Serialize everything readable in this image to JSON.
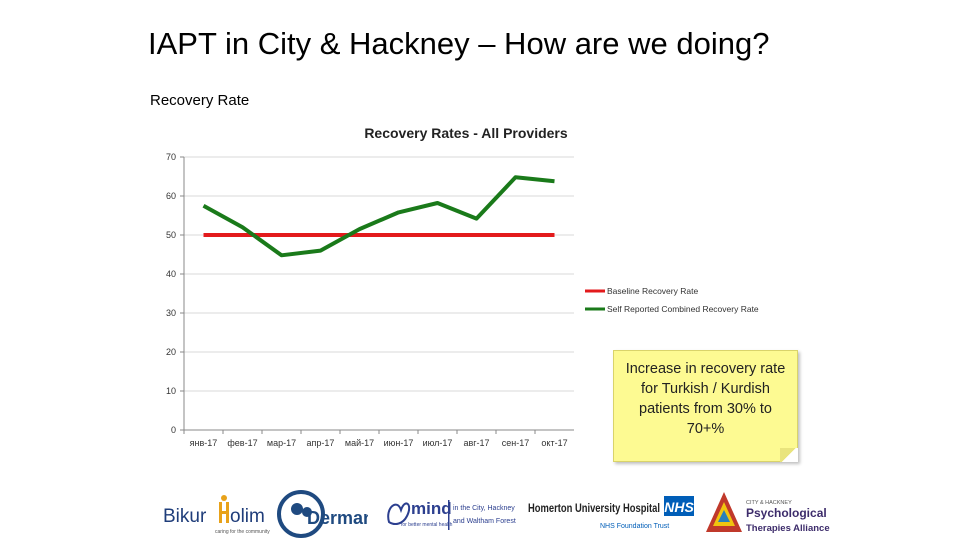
{
  "slide": {
    "title": "IAPT in City & Hackney – How are we doing?",
    "subtitle": "Recovery Rate"
  },
  "chart_data": {
    "type": "line",
    "title": "Recovery Rates - All Providers",
    "categories": [
      "янв-17",
      "фев-17",
      "мар-17",
      "апр-17",
      "май-17",
      "июн-17",
      "июл-17",
      "авг-17",
      "сен-17",
      "окт-17"
    ],
    "ylim": [
      0,
      70
    ],
    "yticks": [
      0,
      10,
      20,
      30,
      40,
      50,
      60,
      70
    ],
    "grid": true,
    "legend_position": "right",
    "series": [
      {
        "name": "Baseline Recovery Rate",
        "color": "#e31a1c",
        "values": [
          50,
          50,
          50,
          50,
          50,
          50,
          50,
          50,
          50,
          50
        ]
      },
      {
        "name": "Self Reported Combined Recovery Rate",
        "color": "#1a7a1a",
        "values": [
          57.5,
          52,
          44.8,
          46,
          51.5,
          55.8,
          58.2,
          54.2,
          64.8,
          63.8
        ]
      }
    ]
  },
  "note": {
    "text": "Increase in recovery rate for Turkish / Kurdish patients from 30% to 70+%"
  },
  "logos": {
    "bikur_prefix": "Bikur",
    "bikur_suffix": "olim",
    "bikur_tagline": "caring for the community",
    "derman_name": "Derman",
    "mind_name": "mind",
    "mind_tagline": "for better mental health",
    "mind_location_1": "in the City, Hackney",
    "mind_location_2": "and Waltham Forest",
    "homerton_name": "Homerton University Hospital",
    "nhs_badge": "NHS",
    "homerton_trust": "NHS Foundation Trust",
    "alliance_top": "CITY & HACKNEY",
    "alliance_line1": "Psychological",
    "alliance_line2": "Therapies Alliance"
  }
}
